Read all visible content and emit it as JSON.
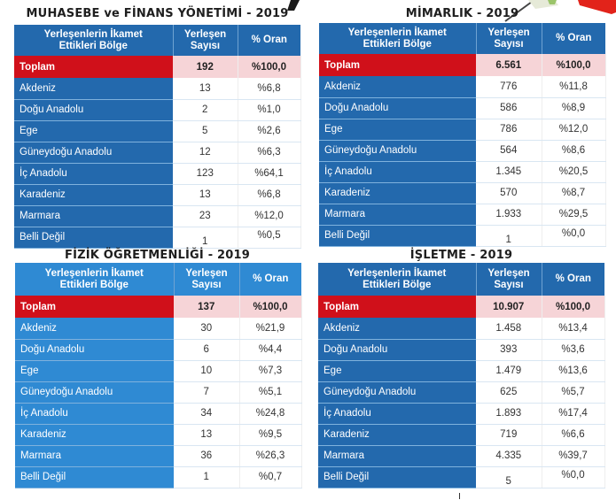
{
  "colors": {
    "header_blue": "#2369ad",
    "header_blue_light": "#2f8ad3",
    "total_red": "#d0101a",
    "total_pink": "#f6d4d7"
  },
  "decorations": [
    "pen-graphic",
    "green-marker-graphic",
    "red-marker-graphic"
  ],
  "tables": [
    {
      "title": "MUHASEBE ve FİNANS YÖNETİMİ - 2019",
      "headers": [
        "Yerleşenlerin İkamet Ettikleri Bölge",
        "Yerleşen Sayısı",
        "% Oran"
      ],
      "total": {
        "label": "Toplam",
        "count": "192",
        "pct": "%100,0"
      },
      "rows": [
        {
          "region": "Akdeniz",
          "count": "13",
          "pct": "%6,8"
        },
        {
          "region": "Doğu Anadolu",
          "count": "2",
          "pct": "%1,0"
        },
        {
          "region": "Ege",
          "count": "5",
          "pct": "%2,6"
        },
        {
          "region": "Güneydoğu Anadolu",
          "count": "12",
          "pct": "%6,3"
        },
        {
          "region": "İç Anadolu",
          "count": "123",
          "pct": "%64,1"
        },
        {
          "region": "Karadeniz",
          "count": "13",
          "pct": "%6,8"
        },
        {
          "region": "Marmara",
          "count": "23",
          "pct": "%12,0"
        },
        {
          "region": "Belli Değil",
          "count": "1",
          "pct": "%0,5"
        }
      ]
    },
    {
      "title": "MİMARLIK - 2019",
      "headers": [
        "Yerleşenlerin İkamet Ettikleri Bölge",
        "Yerleşen Sayısı",
        "% Oran"
      ],
      "total": {
        "label": "Toplam",
        "count": "6.561",
        "pct": "%100,0"
      },
      "rows": [
        {
          "region": "Akdeniz",
          "count": "776",
          "pct": "%11,8"
        },
        {
          "region": "Doğu Anadolu",
          "count": "586",
          "pct": "%8,9"
        },
        {
          "region": "Ege",
          "count": "786",
          "pct": "%12,0"
        },
        {
          "region": "Güneydoğu Anadolu",
          "count": "564",
          "pct": "%8,6"
        },
        {
          "region": "İç Anadolu",
          "count": "1.345",
          "pct": "%20,5"
        },
        {
          "region": "Karadeniz",
          "count": "570",
          "pct": "%8,7"
        },
        {
          "region": "Marmara",
          "count": "1.933",
          "pct": "%29,5"
        },
        {
          "region": "Belli Değil",
          "count": "1",
          "pct": "%0,0"
        }
      ]
    },
    {
      "title": "FİZİK ÖĞRETMENLİĞİ - 2019",
      "headers": [
        "Yerleşenlerin İkamet Ettikleri Bölge",
        "Yerleşen Sayısı",
        "% Oran"
      ],
      "total": {
        "label": "Toplam",
        "count": "137",
        "pct": "%100,0"
      },
      "rows": [
        {
          "region": "Akdeniz",
          "count": "30",
          "pct": "%21,9"
        },
        {
          "region": "Doğu Anadolu",
          "count": "6",
          "pct": "%4,4"
        },
        {
          "region": "Ege",
          "count": "10",
          "pct": "%7,3"
        },
        {
          "region": "Güneydoğu Anadolu",
          "count": "7",
          "pct": "%5,1"
        },
        {
          "region": "İç Anadolu",
          "count": "34",
          "pct": "%24,8"
        },
        {
          "region": "Karadeniz",
          "count": "13",
          "pct": "%9,5"
        },
        {
          "region": "Marmara",
          "count": "36",
          "pct": "%26,3"
        },
        {
          "region": "Belli Değil",
          "count": "1",
          "pct": "%0,7"
        }
      ]
    },
    {
      "title": "İŞLETME - 2019",
      "headers": [
        "Yerleşenlerin İkamet Ettikleri Bölge",
        "Yerleşen Sayısı",
        "% Oran"
      ],
      "total": {
        "label": "Toplam",
        "count": "10.907",
        "pct": "%100,0"
      },
      "rows": [
        {
          "region": "Akdeniz",
          "count": "1.458",
          "pct": "%13,4"
        },
        {
          "region": "Doğu Anadolu",
          "count": "393",
          "pct": "%3,6"
        },
        {
          "region": "Ege",
          "count": "1.479",
          "pct": "%13,6"
        },
        {
          "region": "Güneydoğu Anadolu",
          "count": "625",
          "pct": "%5,7"
        },
        {
          "region": "İç Anadolu",
          "count": "1.893",
          "pct": "%17,4"
        },
        {
          "region": "Karadeniz",
          "count": "719",
          "pct": "%6,6"
        },
        {
          "region": "Marmara",
          "count": "4.335",
          "pct": "%39,7"
        },
        {
          "region": "Belli Değil",
          "count": "5",
          "pct": "%0,0"
        }
      ]
    }
  ]
}
